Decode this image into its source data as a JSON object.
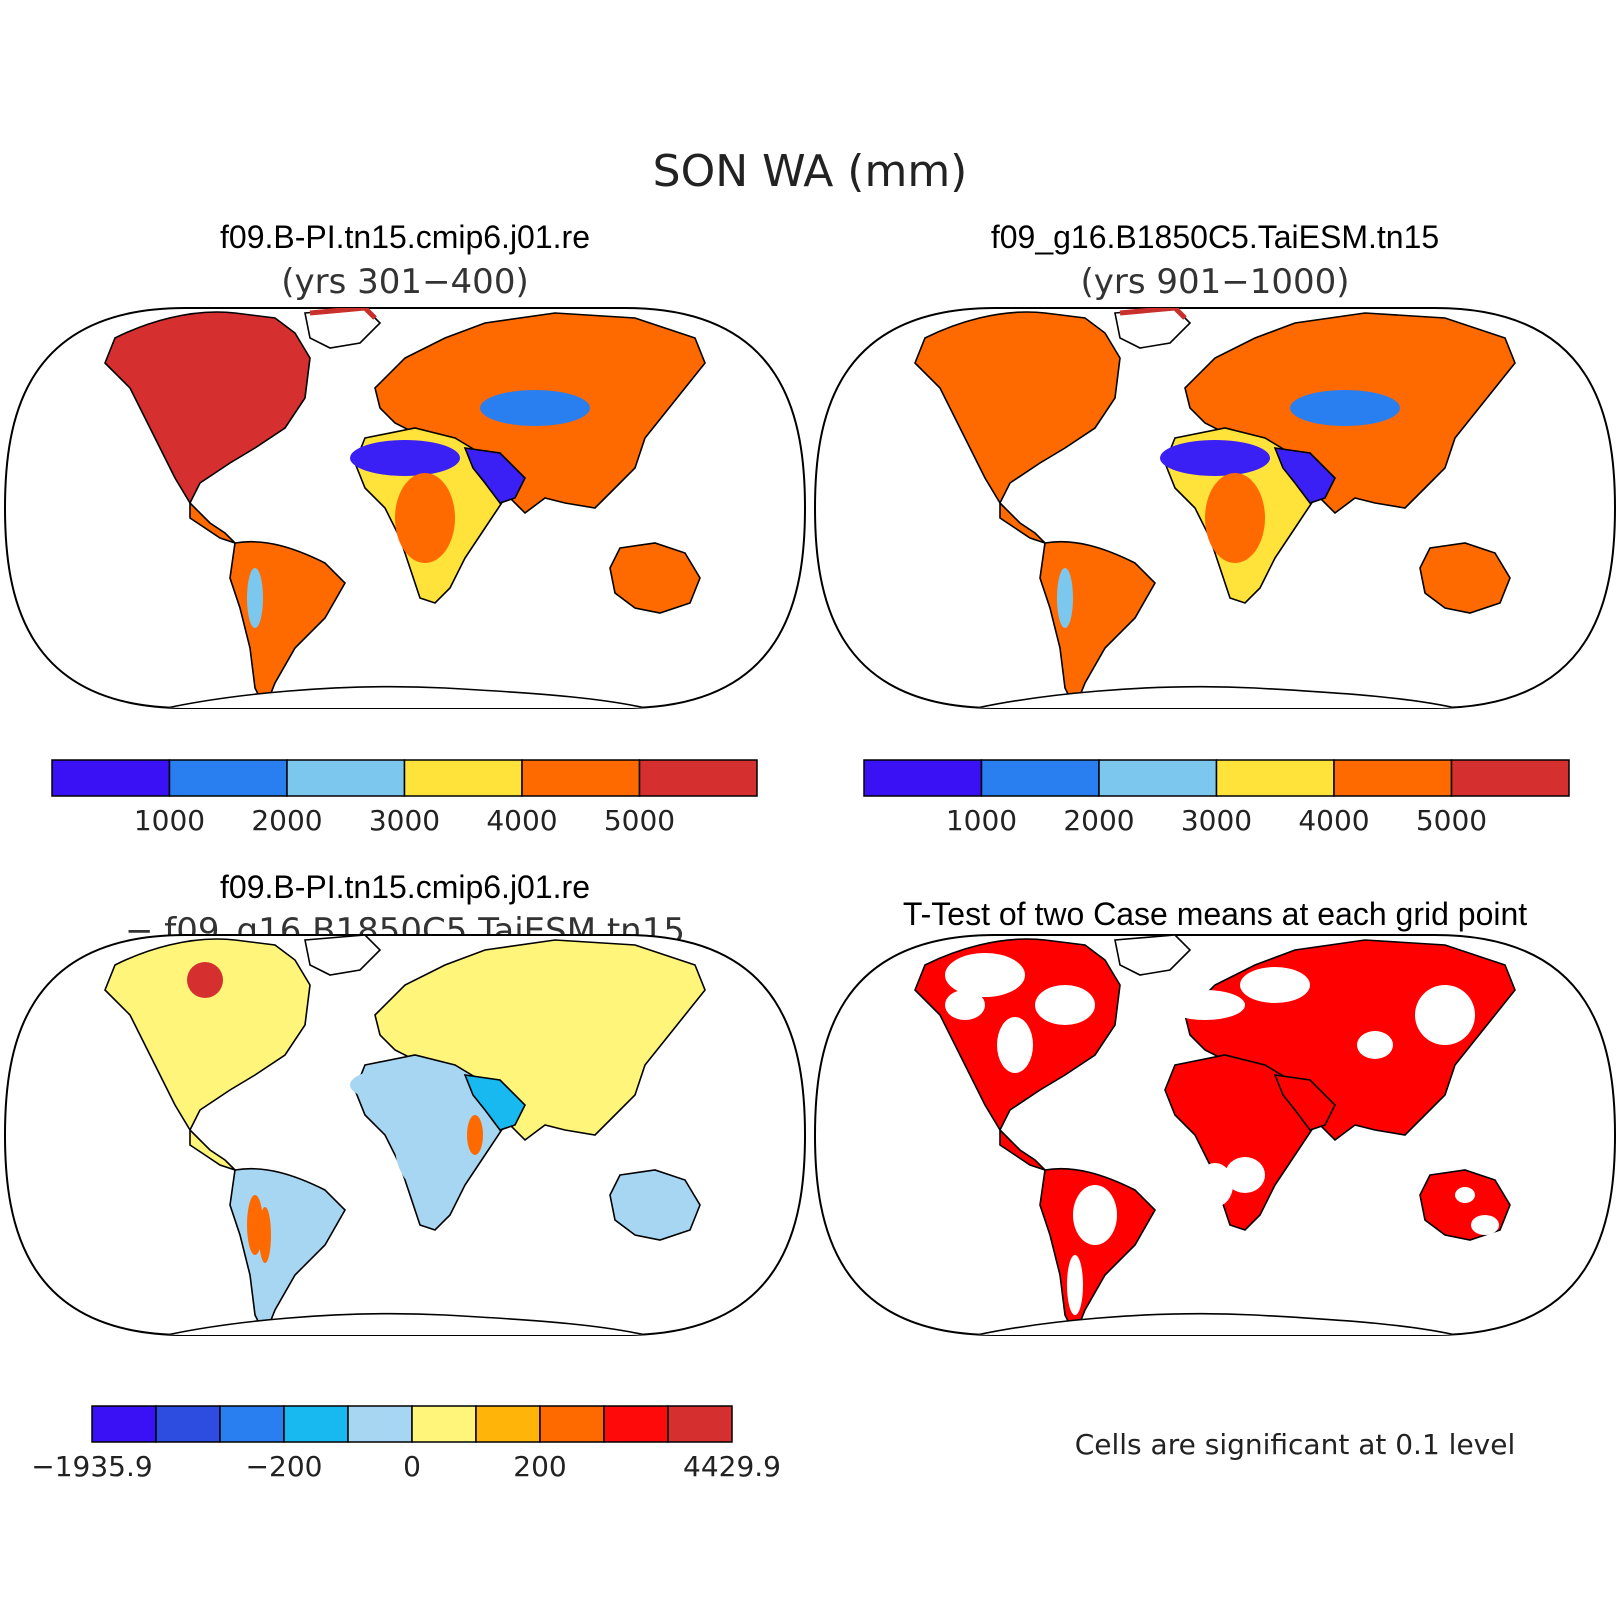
{
  "figure": {
    "title": "SON WA (mm)"
  },
  "panels": [
    {
      "id": "case1",
      "title": "f09.B-PI.tn15.cmip6.j01.re",
      "subtitle": "(yrs 301−400)",
      "regions": {
        "north_america": "#d62f2f",
        "greenland": "#c9302c",
        "land_default": "#ff6a00",
        "sahara": "#3a20f5",
        "arabia": "#3a20f5",
        "central_asia": "#2a7ff0",
        "sahel": "#ffe23a",
        "andes": "#7cc7ee"
      }
    },
    {
      "id": "case2",
      "title": "f09_g16.B1850C5.TaiESM.tn15",
      "subtitle": "(yrs 901−1000)",
      "regions": {
        "north_america": "#ff6a00",
        "greenland": "#c9302c",
        "land_default": "#ff6a00",
        "sahara": "#3a20f5",
        "arabia": "#3a20f5",
        "central_asia": "#2a7ff0",
        "sahel": "#ffe23a",
        "andes": "#7cc7ee"
      }
    },
    {
      "id": "diff",
      "title": "f09.B-PI.tn15.cmip6.j01.re",
      "subtitle": "− f09_g16.B1850C5.TaiESM.tn15",
      "regions": {
        "north_america": "#fff57a",
        "greenland": "#fff57a",
        "land_default": "#fff57a",
        "sahara": "#a6d6f2",
        "arabia": "#18b8f0",
        "central_asia": "#fff57a",
        "sahel": "#a6d6f2",
        "andes": "#ff6a00",
        "south_america": "#a6d6f2",
        "australia": "#a6d6f2",
        "canada_hot": "#d62f2f"
      }
    },
    {
      "id": "ttest",
      "title": "T-Test of two Case means at each grid point",
      "note": "Cells are significant at 0.1 level",
      "regions": {
        "significant": "#ff0000",
        "not_significant": "#ffffff"
      }
    }
  ],
  "colorbars": [
    {
      "id": "cb1",
      "colors": [
        "#3a10f5",
        "#2a7ff0",
        "#7cc7ee",
        "#ffe23a",
        "#ff6a00",
        "#d62f2f"
      ],
      "labels": [
        "1000",
        "2000",
        "3000",
        "4000",
        "5000"
      ]
    },
    {
      "id": "cb2",
      "colors": [
        "#3a10f5",
        "#2a7ff0",
        "#7cc7ee",
        "#ffe23a",
        "#ff6a00",
        "#d62f2f"
      ],
      "labels": [
        "1000",
        "2000",
        "3000",
        "4000",
        "5000"
      ]
    },
    {
      "id": "cb3",
      "colors": [
        "#3a10f5",
        "#2c4de0",
        "#2a7ff0",
        "#18b8f0",
        "#a6d6f2",
        "#fff57a",
        "#ffb40a",
        "#ff6a00",
        "#ff0a0a",
        "#d62f2f"
      ],
      "labels": [
        "−1935.9",
        "−200",
        "0",
        "200",
        "4429.9"
      ]
    }
  ]
}
